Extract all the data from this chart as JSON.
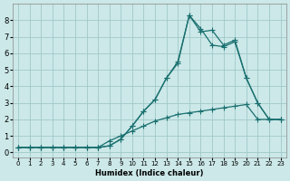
{
  "xlabel": "Humidex (Indice chaleur)",
  "bg_color": "#cce8e8",
  "grid_color": "#a0c8c8",
  "line_color": "#1a7070",
  "xlim": [
    -0.5,
    23.5
  ],
  "ylim": [
    -0.3,
    9.0
  ],
  "xticks": [
    0,
    1,
    2,
    3,
    4,
    5,
    6,
    7,
    8,
    9,
    10,
    11,
    12,
    13,
    14,
    15,
    16,
    17,
    18,
    19,
    20,
    21,
    22,
    23
  ],
  "yticks": [
    0,
    1,
    2,
    3,
    4,
    5,
    6,
    7,
    8
  ],
  "series1": [
    0.3,
    0.3,
    0.3,
    0.3,
    0.3,
    0.3,
    0.3,
    0.3,
    0.4,
    0.8,
    1.6,
    2.5,
    3.2,
    4.5,
    5.4,
    8.3,
    7.3,
    7.4,
    6.5,
    6.8,
    4.5,
    3.0,
    2.0,
    2.0
  ],
  "series2": [
    0.3,
    0.3,
    0.3,
    0.3,
    0.3,
    0.3,
    0.3,
    0.3,
    0.4,
    0.8,
    1.6,
    2.5,
    3.2,
    4.5,
    5.5,
    8.3,
    7.5,
    6.5,
    6.4,
    6.7,
    4.5,
    3.0,
    2.0,
    2.0
  ],
  "series3": [
    0.3,
    0.3,
    0.3,
    0.3,
    0.3,
    0.3,
    0.3,
    0.3,
    0.7,
    1.0,
    1.3,
    1.6,
    1.9,
    2.1,
    2.3,
    2.4,
    2.5,
    2.6,
    2.7,
    2.8,
    2.9,
    2.0,
    2.0,
    2.0
  ]
}
